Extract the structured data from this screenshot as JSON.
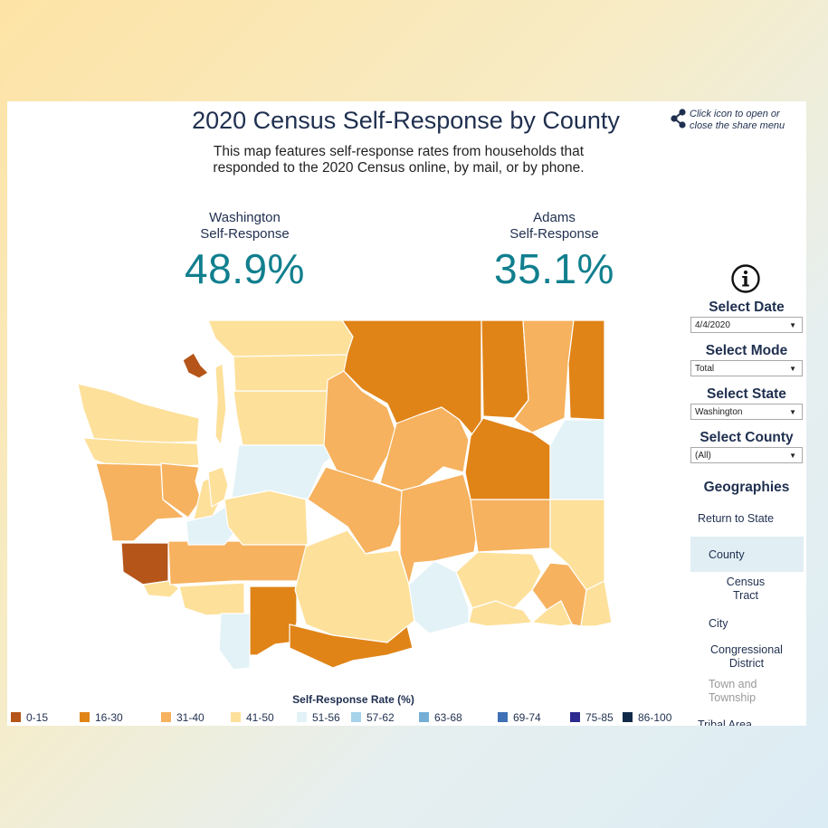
{
  "header": {
    "title": "2020 Census Self-Response by County",
    "subtitle_line1": "This map features self-response rates from households that",
    "subtitle_line2": "responded to the 2020 Census online, by mail, or by phone.",
    "share_text_line1": "Click icon to open or",
    "share_text_line2": "close the share menu"
  },
  "stats": {
    "state": {
      "name": "Washington",
      "label": "Self-Response",
      "value": "48.9%"
    },
    "county": {
      "name": "Adams",
      "label": "Self-Response",
      "value": "35.1%"
    }
  },
  "controls": {
    "date": {
      "label": "Select Date",
      "value": "4/4/2020"
    },
    "mode": {
      "label": "Select Mode",
      "value": "Total"
    },
    "state": {
      "label": "Select State",
      "value": "Washington"
    },
    "county": {
      "label": "Select County",
      "value": "(All)"
    }
  },
  "geographies": {
    "heading": "Geographies",
    "return": "Return to State",
    "county": "County",
    "tract_line1": "Census",
    "tract_line2": "Tract",
    "city": "City",
    "cd_line1": "Congressional",
    "cd_line2": "District",
    "town_line1": "Town and",
    "town_line2": "Township",
    "tribal": "Tribal Area"
  },
  "legend": {
    "title": "Self-Response Rate (%)",
    "items": [
      {
        "label": "0-15",
        "color": "#b5551a"
      },
      {
        "label": "16-30",
        "color": "#e08418"
      },
      {
        "label": "31-40",
        "color": "#f6b25f"
      },
      {
        "label": "41-50",
        "color": "#fde09a"
      },
      {
        "label": "51-56",
        "color": "#e2f2f7"
      },
      {
        "label": "57-62",
        "color": "#a6d2ea"
      },
      {
        "label": "63-68",
        "color": "#74aed6"
      },
      {
        "label": "69-74",
        "color": "#3e70b5"
      },
      {
        "label": "75-85",
        "color": "#2d2b8f"
      },
      {
        "label": "86-100",
        "color": "#122a4a"
      }
    ]
  },
  "map_colors": {
    "c0": "#b5551a",
    "c16": "#e08418",
    "c31": "#f6b25f",
    "c41": "#fde09a",
    "c51": "#e2f2f7"
  }
}
